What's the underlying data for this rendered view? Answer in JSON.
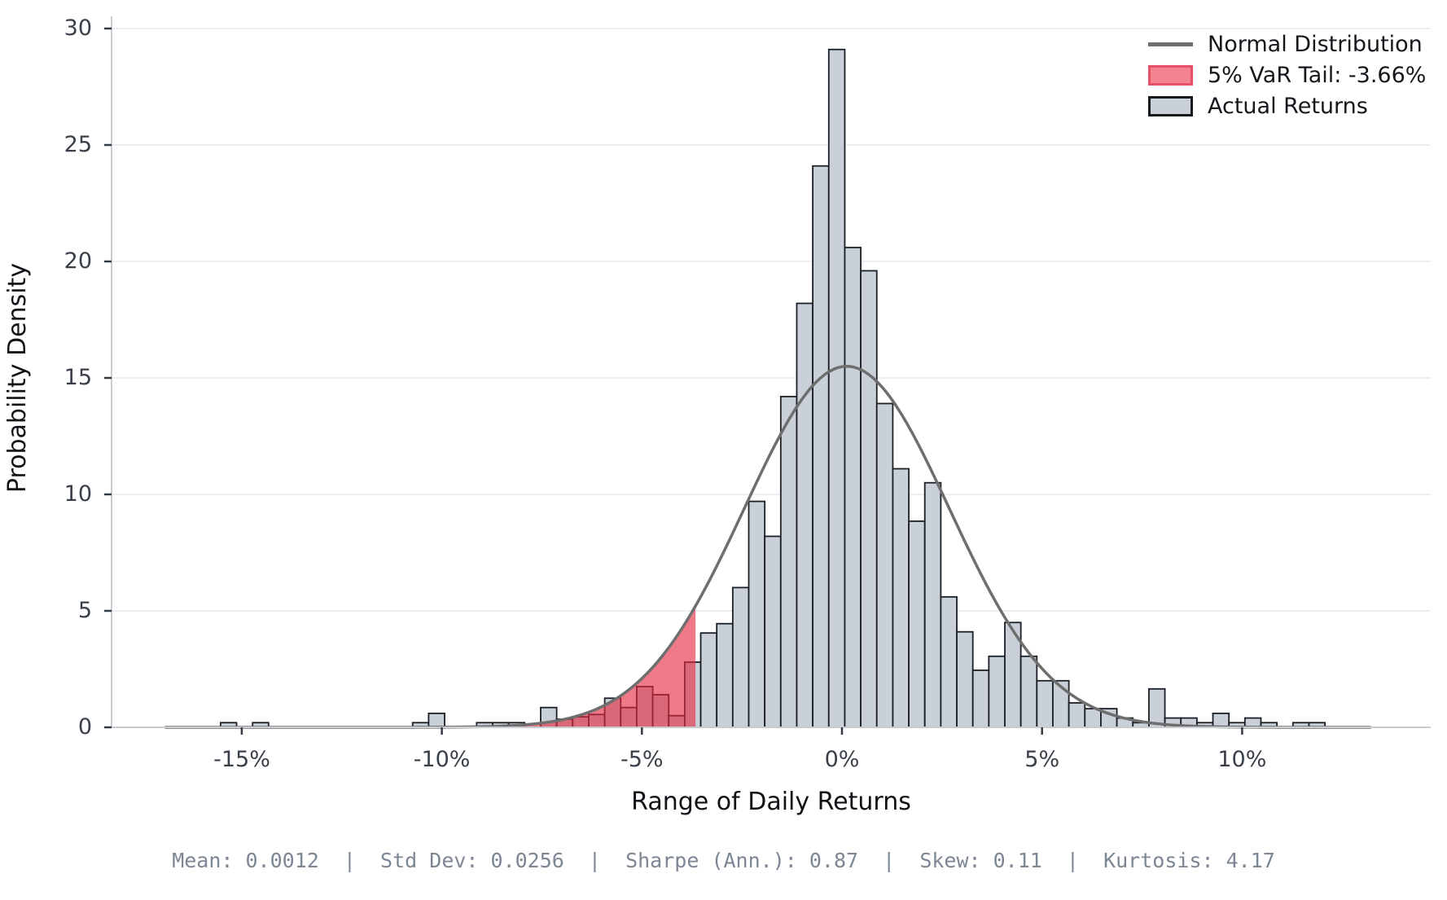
{
  "figure": {
    "stats_line": "Mean: 0.0012  |  Std Dev: 0.0256  |  Sharpe (Ann.): 0.87  |  Skew: 0.11  |  Kurtosis: 4.17"
  },
  "legend": {
    "items": [
      {
        "label": "Normal Distribution",
        "swatch": "line"
      },
      {
        "label": "5% VaR Tail: -3.66%",
        "swatch": "patch-red"
      },
      {
        "label": "Actual Returns",
        "swatch": "patch-gray"
      }
    ]
  },
  "colors": {
    "bar_fill": "#cad0d8",
    "bar_edge": "#1b1f26",
    "curve": "#6e6e6e",
    "var_fill": "rgba(228,40,62,0.62)",
    "var_edge": "#e4506a",
    "grid": "#e9e9ed",
    "spine": "#c9ccd1",
    "tick": "#333b45",
    "tick_label": "#3a4049",
    "stats_text": "#7c8695"
  },
  "chart_data": {
    "type": "bar",
    "subtype": "histogram-with-normal-overlay",
    "title": "",
    "xlabel": "Range of Daily Returns",
    "ylabel": "Probability Density",
    "legend_position": "upper-right",
    "grid": "horizontal-only",
    "xlim_pct": [
      -18.3,
      14.7
    ],
    "ylim": [
      0,
      30.5
    ],
    "x_ticks": [
      {
        "pct": -15,
        "label": "-15%"
      },
      {
        "pct": -10,
        "label": "-10%"
      },
      {
        "pct": -5,
        "label": "-5%"
      },
      {
        "pct": 0,
        "label": "0%"
      },
      {
        "pct": 5,
        "label": "5%"
      },
      {
        "pct": 10,
        "label": "10%"
      }
    ],
    "y_ticks": [
      {
        "v": 0,
        "label": "0"
      },
      {
        "v": 5,
        "label": "5"
      },
      {
        "v": 10,
        "label": "10"
      },
      {
        "v": 15,
        "label": "15"
      },
      {
        "v": 20,
        "label": "20"
      },
      {
        "v": 25,
        "label": "25"
      },
      {
        "v": 30,
        "label": "30"
      }
    ],
    "bin_width_pct": 0.4,
    "bars_note": "each entry = [left edge of bin in percent, probability density]",
    "bars": [
      [
        -15.53,
        0.2
      ],
      [
        -14.73,
        0.2
      ],
      [
        -10.73,
        0.2
      ],
      [
        -10.33,
        0.6
      ],
      [
        -9.13,
        0.2
      ],
      [
        -8.73,
        0.2
      ],
      [
        -8.33,
        0.2
      ],
      [
        -7.53,
        0.85
      ],
      [
        -7.13,
        0.35
      ],
      [
        -6.73,
        0.45
      ],
      [
        -6.33,
        0.55
      ],
      [
        -5.93,
        1.25
      ],
      [
        -5.53,
        0.85
      ],
      [
        -5.13,
        1.75
      ],
      [
        -4.73,
        1.4
      ],
      [
        -4.33,
        0.5
      ],
      [
        -3.93,
        2.8
      ],
      [
        -3.53,
        4.05
      ],
      [
        -3.13,
        4.45
      ],
      [
        -2.73,
        6.0
      ],
      [
        -2.33,
        9.7
      ],
      [
        -1.93,
        8.2
      ],
      [
        -1.53,
        14.2
      ],
      [
        -1.13,
        18.2
      ],
      [
        -0.73,
        24.1
      ],
      [
        -0.33,
        29.1
      ],
      [
        0.07,
        20.6
      ],
      [
        0.47,
        19.6
      ],
      [
        0.87,
        13.9
      ],
      [
        1.27,
        11.1
      ],
      [
        1.67,
        8.85
      ],
      [
        2.07,
        10.5
      ],
      [
        2.47,
        5.6
      ],
      [
        2.87,
        4.1
      ],
      [
        3.27,
        2.45
      ],
      [
        3.67,
        3.05
      ],
      [
        4.07,
        4.5
      ],
      [
        4.47,
        3.05
      ],
      [
        4.87,
        2.0
      ],
      [
        5.27,
        2.0
      ],
      [
        5.67,
        1.05
      ],
      [
        6.07,
        0.8
      ],
      [
        6.47,
        0.8
      ],
      [
        6.87,
        0.4
      ],
      [
        7.27,
        0.2
      ],
      [
        7.67,
        1.65
      ],
      [
        8.07,
        0.4
      ],
      [
        8.47,
        0.4
      ],
      [
        8.87,
        0.2
      ],
      [
        9.27,
        0.6
      ],
      [
        9.67,
        0.2
      ],
      [
        10.07,
        0.4
      ],
      [
        10.47,
        0.2
      ],
      [
        11.27,
        0.2
      ],
      [
        11.67,
        0.2
      ]
    ],
    "normal_curve": {
      "mean_pct": 0.12,
      "sigma_pct": 2.56,
      "peak_density": 15.5,
      "x_start_pct": -16.9,
      "x_end_pct": 13.2
    },
    "var_tail": {
      "threshold_pct": -3.66,
      "fill_from_pct": -9.0,
      "label": "5% VaR Tail: -3.66%"
    }
  }
}
